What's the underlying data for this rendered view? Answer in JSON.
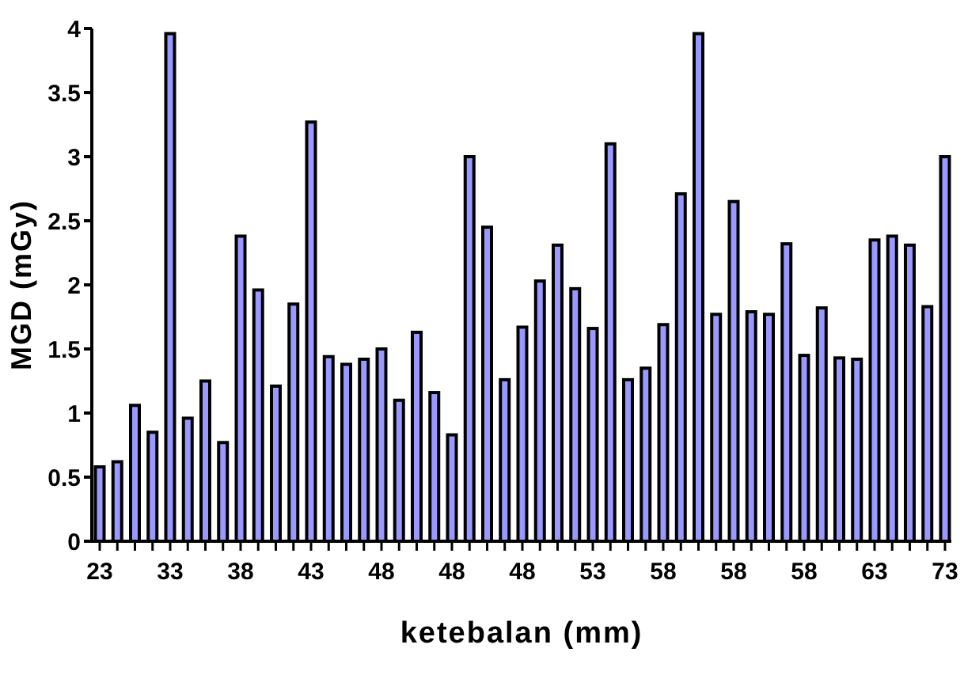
{
  "chart_data": {
    "type": "bar",
    "xlabel": "ketebalan (mm)",
    "ylabel": "MGD (mGy)",
    "categories": [
      "23",
      null,
      null,
      null,
      "33",
      null,
      null,
      null,
      "38",
      null,
      null,
      null,
      "43",
      null,
      null,
      null,
      "48",
      null,
      null,
      null,
      "48",
      null,
      null,
      null,
      "48",
      null,
      null,
      null,
      "53",
      null,
      null,
      null,
      "58",
      null,
      null,
      null,
      "58",
      null,
      null,
      null,
      "58",
      null,
      null,
      null,
      "63",
      null,
      null,
      null,
      "73"
    ],
    "values": [
      0.58,
      0.62,
      1.06,
      0.85,
      3.96,
      0.96,
      1.25,
      0.77,
      2.38,
      1.96,
      1.21,
      1.85,
      3.27,
      1.44,
      1.38,
      1.42,
      1.5,
      1.1,
      1.63,
      1.16,
      0.83,
      3.0,
      2.45,
      1.26,
      1.67,
      2.03,
      2.31,
      1.97,
      1.66,
      3.1,
      1.26,
      1.35,
      1.69,
      2.71,
      3.96,
      1.77,
      2.65,
      1.79,
      1.77,
      2.32,
      1.45,
      1.82,
      1.43,
      1.42,
      2.35,
      2.38,
      2.31,
      1.83,
      3.0
    ],
    "color": "#9999ff",
    "ylim": [
      0,
      4
    ],
    "yticks": [
      0,
      0.5,
      1,
      1.5,
      2,
      2.5,
      3,
      3.5,
      4
    ],
    "grid": false
  }
}
